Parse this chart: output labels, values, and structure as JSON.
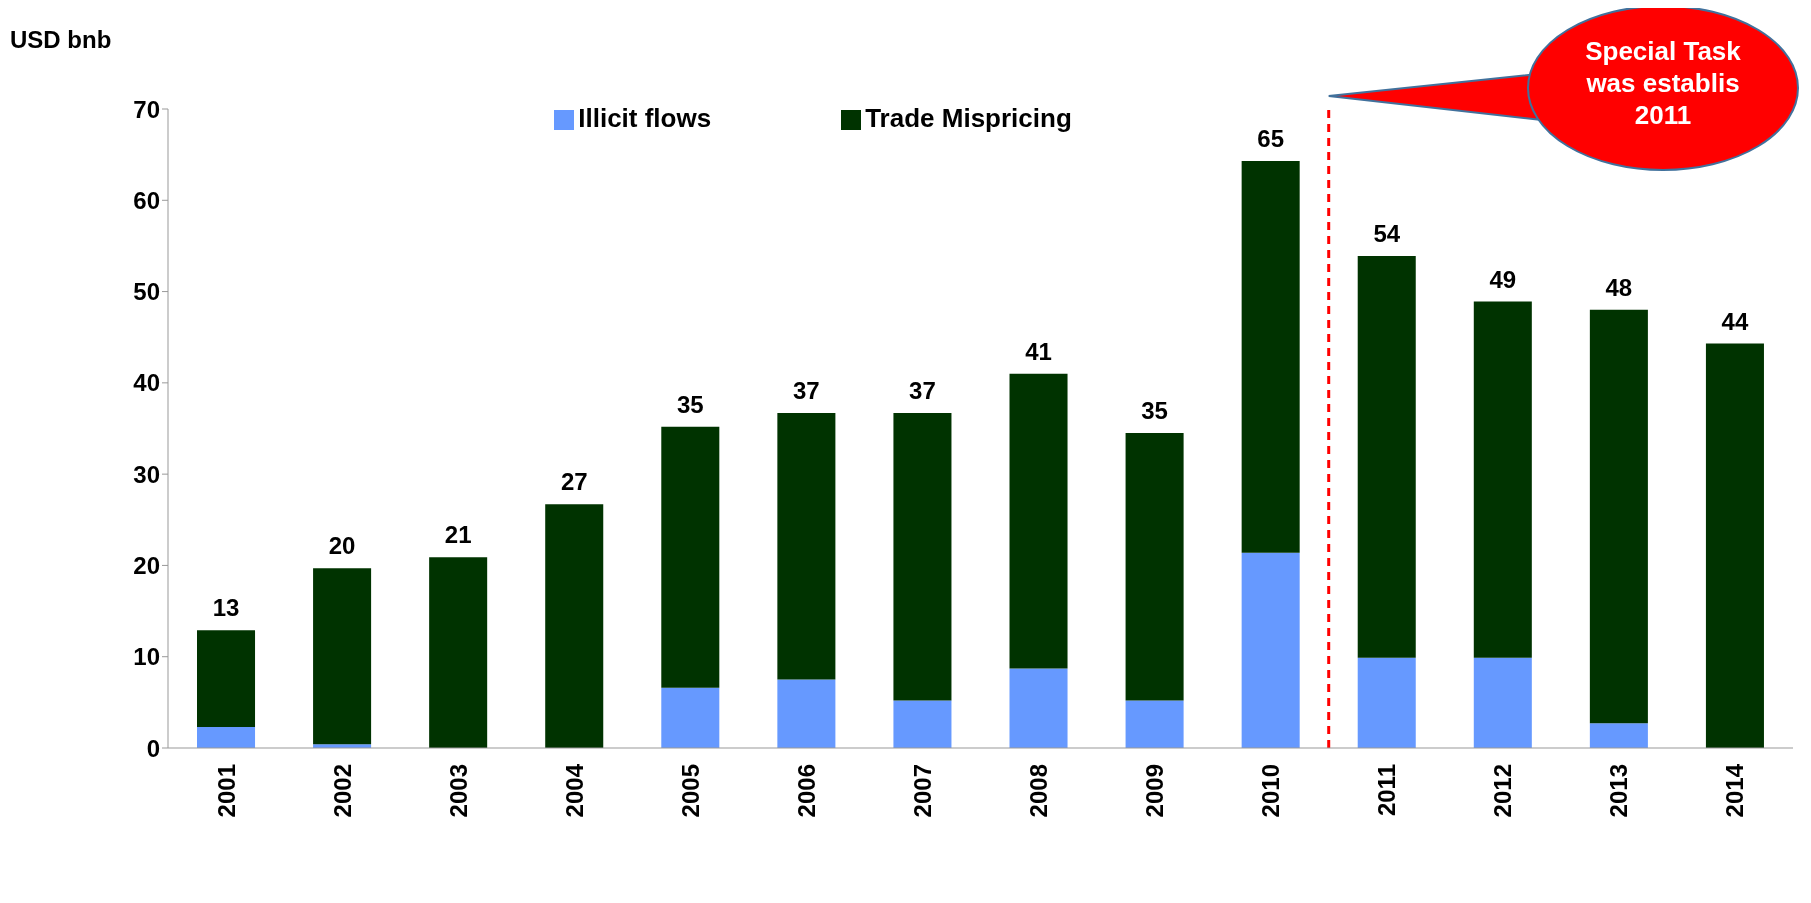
{
  "chart_data": {
    "type": "bar",
    "stacked": true,
    "ylabel": "USD bnb",
    "x": [
      2001,
      2002,
      2003,
      2004,
      2005,
      2006,
      2007,
      2008,
      2009,
      2010,
      2011,
      2012,
      2013,
      2014
    ],
    "xlim": [
      2000.5,
      2014.5
    ],
    "xticks": [
      2001,
      2002,
      2003,
      2004,
      2005,
      2006,
      2007,
      2008,
      2009,
      2010,
      2011,
      2012,
      2013,
      2014
    ],
    "ylim": [
      0,
      70
    ],
    "yticks": [
      0,
      10,
      20,
      30,
      40,
      50,
      60,
      70
    ],
    "series": [
      {
        "name": "Illicit flows",
        "color": "#6699ff",
        "values": [
          2.3,
          0.4,
          0,
          0,
          6.6,
          7.5,
          5.2,
          8.7,
          5.2,
          21.4,
          9.9,
          9.9,
          2.7,
          0
        ]
      },
      {
        "name": "Trade Mispricing",
        "color": "#003300",
        "values": [
          10.6,
          19.3,
          20.9,
          26.7,
          28.6,
          29.2,
          31.5,
          32.3,
          29.3,
          42.9,
          44.0,
          39.0,
          45.3,
          44.3
        ]
      }
    ],
    "totals": [
      "13",
      "20",
      "21",
      "27",
      "35",
      "37",
      "37",
      "41",
      "35",
      "65",
      "54",
      "49",
      "48",
      "44"
    ],
    "ref_lines": [
      {
        "axis": "x",
        "value": 2010.5,
        "color": "#ff0000",
        "line_style": "dashed"
      }
    ],
    "annotations": [
      "Special Task\nwas establis\n2011"
    ],
    "legend": "top",
    "grid": false
  }
}
